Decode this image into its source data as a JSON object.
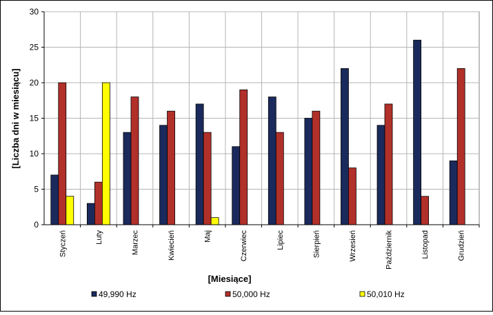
{
  "chart_data": {
    "type": "bar",
    "categories": [
      "Styczeń",
      "Luty",
      "Marzec",
      "Kwiecień",
      "Maj",
      "Czerwiec",
      "Lipiec",
      "Sierpień",
      "Wrzesień",
      "Październik",
      "Listopad",
      "Grudzień"
    ],
    "series": [
      {
        "name": "49,990 Hz",
        "color": "#1b2a5c",
        "values": [
          7,
          3,
          13,
          14,
          17,
          11,
          18,
          15,
          22,
          14,
          26,
          9
        ]
      },
      {
        "name": "50,000 Hz",
        "color": "#b2302a",
        "values": [
          20,
          6,
          18,
          16,
          13,
          19,
          13,
          16,
          8,
          17,
          4,
          22
        ]
      },
      {
        "name": "50,010 Hz",
        "color": "#ffff00",
        "values": [
          4,
          20,
          0,
          0,
          1,
          0,
          0,
          0,
          0,
          0,
          0,
          0
        ]
      }
    ],
    "yticks": [
      "0",
      "5",
      "10",
      "15",
      "20",
      "25",
      "30"
    ],
    "ylim": [
      0,
      30
    ],
    "ylabel": "[Liczba dni w miesiącu]",
    "xlabel": "[Miesiące]",
    "grid": true,
    "legend": "bottom"
  }
}
